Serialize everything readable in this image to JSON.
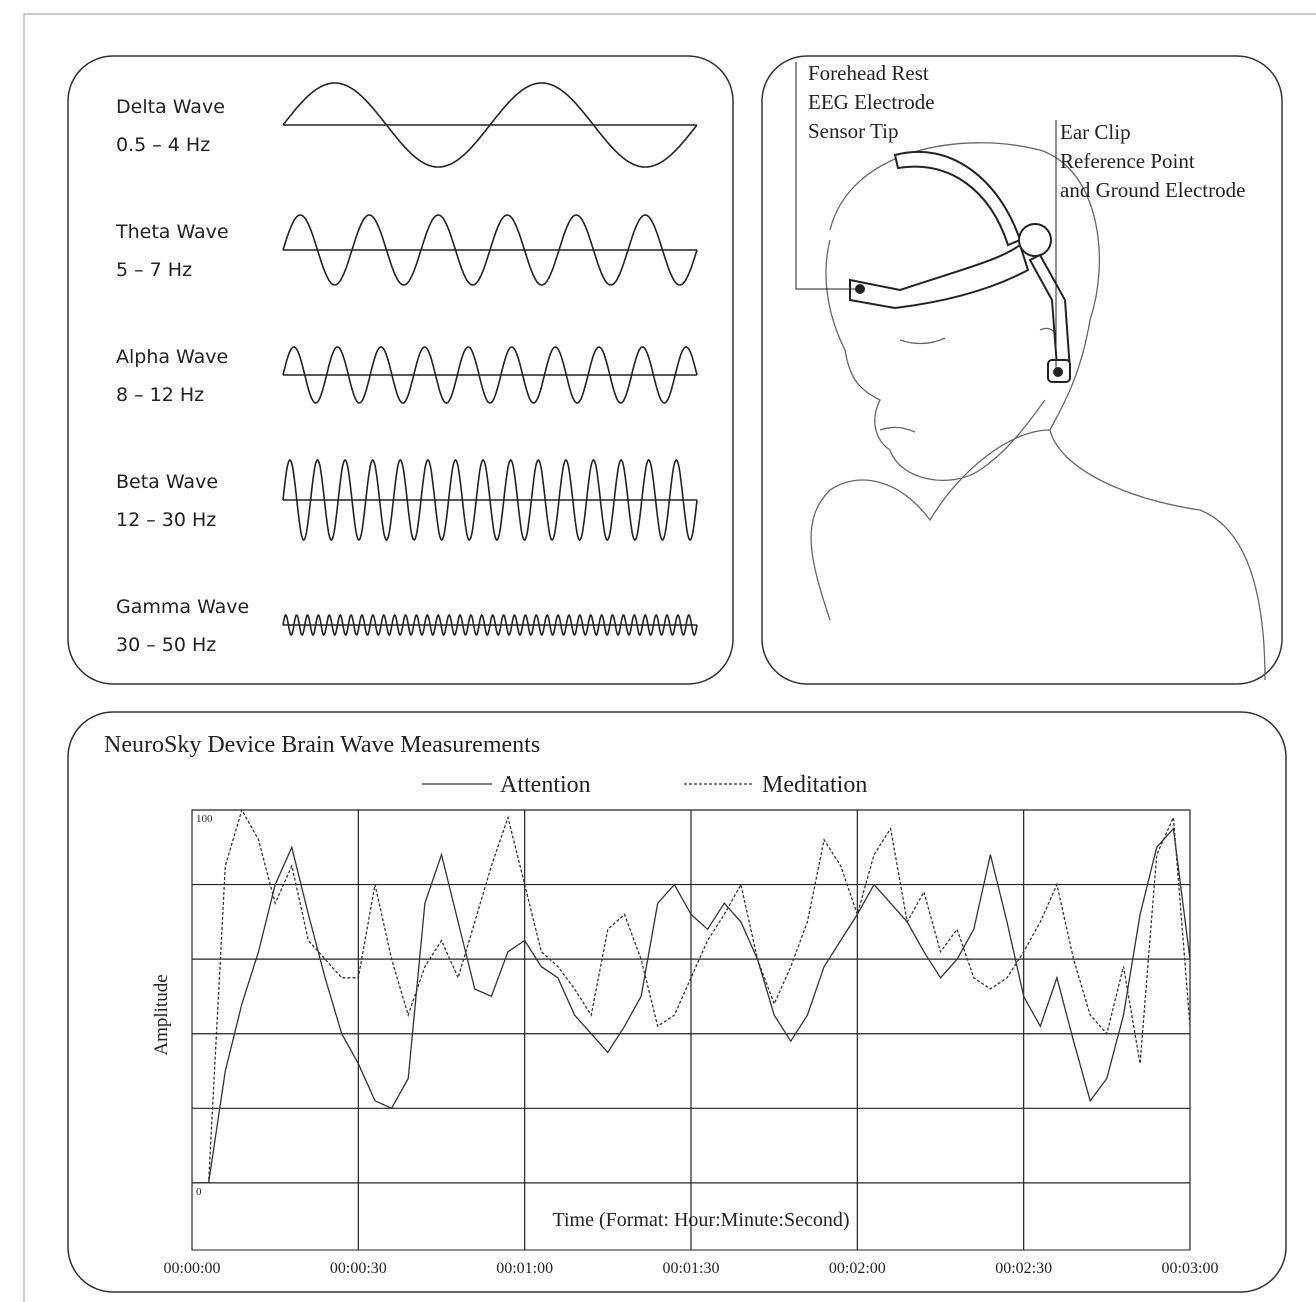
{
  "waves": [
    {
      "name": "Delta Wave",
      "range": "0.5 – 4 Hz"
    },
    {
      "name": "Theta Wave",
      "range": "5 – 7 Hz"
    },
    {
      "name": "Alpha Wave",
      "range": "8 – 12 Hz"
    },
    {
      "name": "Beta Wave",
      "range": "12 – 30 Hz"
    },
    {
      "name": "Gamma Wave",
      "range": "30 – 50 Hz"
    }
  ],
  "headset": {
    "forehead": [
      "Forehead  Rest",
      "EEG Electrode",
      "Sensor Tip"
    ],
    "ear": [
      "Ear Clip",
      "Reference Point",
      "and Ground Electrode"
    ]
  },
  "chart_data": {
    "type": "line",
    "title": "NeuroSky Device Brain Wave Measurements",
    "x_label": "Time (Format: Hour:Minute:Second)",
    "y_label": "Amplitude",
    "x": [
      0,
      3,
      6,
      9,
      12,
      15,
      18,
      21,
      24,
      27,
      30,
      33,
      36,
      39,
      42,
      45,
      48,
      51,
      54,
      57,
      60,
      63,
      66,
      69,
      72,
      75,
      78,
      81,
      84,
      87,
      90,
      93,
      96,
      99,
      102,
      105,
      108,
      111,
      114,
      117,
      120,
      123,
      126,
      129,
      132,
      135,
      138,
      141,
      144,
      147,
      150,
      153,
      156,
      159,
      162,
      165,
      168,
      171,
      174,
      177,
      180
    ],
    "series": [
      {
        "name": "Attention",
        "color": "#333333",
        "values": [
          0,
          0,
          30,
          48,
          62,
          80,
          90,
          72,
          55,
          40,
          32,
          22,
          20,
          28,
          75,
          88,
          70,
          52,
          50,
          62,
          65,
          58,
          55,
          45,
          40,
          35,
          42,
          50,
          75,
          80,
          72,
          68,
          75,
          70,
          60,
          45,
          38,
          45,
          58,
          65,
          72,
          80,
          75,
          70,
          62,
          55,
          60,
          68,
          88,
          70,
          50,
          42,
          55,
          38,
          22,
          28,
          45,
          72,
          90,
          95,
          60
        ]
      },
      {
        "name": "Meditation",
        "color": "#333333",
        "values": [
          0,
          0,
          85,
          100,
          92,
          75,
          85,
          65,
          60,
          55,
          55,
          80,
          60,
          45,
          58,
          65,
          55,
          70,
          85,
          98,
          80,
          62,
          58,
          52,
          45,
          68,
          72,
          60,
          42,
          45,
          55,
          65,
          72,
          80,
          60,
          48,
          58,
          70,
          92,
          85,
          72,
          88,
          95,
          70,
          78,
          62,
          68,
          55,
          52,
          55,
          62,
          70,
          80,
          60,
          45,
          40,
          58,
          32,
          88,
          98,
          42
        ]
      }
    ],
    "xlim": [
      0,
      180
    ],
    "ylim": [
      -18,
      100
    ],
    "xticks": [
      {
        "value": 0,
        "label": "00:00:00"
      },
      {
        "value": 30,
        "label": "00:00:30"
      },
      {
        "value": 60,
        "label": "00:01:00"
      },
      {
        "value": 90,
        "label": "00:01:30"
      },
      {
        "value": 120,
        "label": "00:02:00"
      },
      {
        "value": 150,
        "label": "00:02:30"
      },
      {
        "value": 180,
        "label": "00:03:00"
      }
    ],
    "yticks": [
      0,
      {
        "value": 20,
        "label": null
      },
      {
        "value": 40,
        "label": null
      },
      {
        "value": 60,
        "label": null
      },
      {
        "value": 80,
        "label": null
      },
      100
    ],
    "grid": true
  }
}
